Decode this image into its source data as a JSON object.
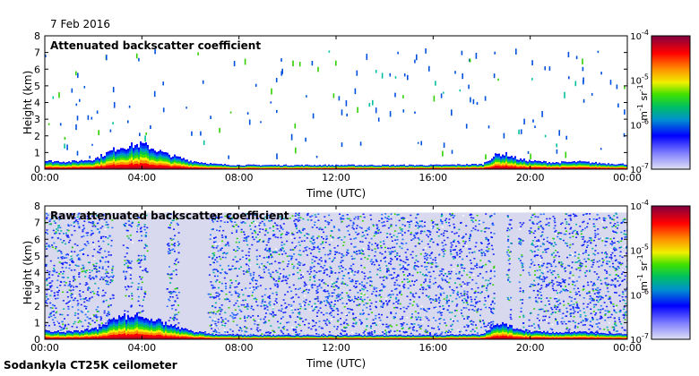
{
  "date": "7 Feb 2016",
  "footer": "Sodankyla CT25K ceilometer",
  "chart_data": [
    {
      "type": "heatmap",
      "title": "Attenuated backscatter coefficient",
      "xlabel": "Time (UTC)",
      "ylabel": "Height (km)",
      "x_ticks": [
        "00:00",
        "04:00",
        "08:00",
        "12:00",
        "16:00",
        "20:00",
        "00:00"
      ],
      "y_ticks": [
        "0",
        "1",
        "2",
        "3",
        "4",
        "5",
        "6",
        "7",
        "8"
      ],
      "xlim_hours": [
        0,
        24
      ],
      "ylim_km": [
        0,
        8
      ],
      "grid": false,
      "colorbar": {
        "scale": "log",
        "range": [
          1e-07,
          0.0001
        ],
        "ticks": [
          {
            "mant": "10",
            "exp": "-4"
          },
          {
            "mant": "10",
            "exp": "-5"
          },
          {
            "mant": "10",
            "exp": "-6"
          },
          {
            "mant": "10",
            "exp": "-7"
          }
        ],
        "unit": {
          "a": "m",
          "a_exp": "-1",
          "b": "sr",
          "b_exp": "-1"
        }
      },
      "features": {
        "boundary_layer_km": [
          [
            0,
            0.5
          ],
          [
            1,
            0.45
          ],
          [
            2,
            0.6
          ],
          [
            3,
            1.3
          ],
          [
            4,
            1.5
          ],
          [
            5,
            0.9
          ],
          [
            6,
            0.5
          ],
          [
            7,
            0.3
          ],
          [
            8,
            0.25
          ],
          [
            10,
            0.25
          ],
          [
            12,
            0.25
          ],
          [
            14,
            0.25
          ],
          [
            16,
            0.25
          ],
          [
            18,
            0.3
          ],
          [
            18.6,
            0.9
          ],
          [
            19,
            0.9
          ],
          [
            19.5,
            0.6
          ],
          [
            20,
            0.5
          ],
          [
            21,
            0.4
          ],
          [
            22,
            0.45
          ],
          [
            23,
            0.35
          ],
          [
            24,
            0.3
          ]
        ]
      }
    },
    {
      "type": "heatmap",
      "title": "Raw attenuated backscatter coefficient",
      "xlabel": "Time (UTC)",
      "ylabel": "Height (km)",
      "x_ticks": [
        "00:00",
        "04:00",
        "08:00",
        "12:00",
        "16:00",
        "20:00",
        "00:00"
      ],
      "y_ticks": [
        "0",
        "1",
        "2",
        "3",
        "4",
        "5",
        "6",
        "7",
        "8"
      ],
      "xlim_hours": [
        0,
        24
      ],
      "ylim_km": [
        0,
        8
      ],
      "grid": false,
      "colorbar": {
        "scale": "log",
        "range": [
          1e-07,
          0.0001
        ],
        "ticks": [
          {
            "mant": "10",
            "exp": "-4"
          },
          {
            "mant": "10",
            "exp": "-5"
          },
          {
            "mant": "10",
            "exp": "-6"
          },
          {
            "mant": "10",
            "exp": "-7"
          }
        ],
        "unit": {
          "a": "m",
          "a_exp": "-1",
          "b": "sr",
          "b_exp": "-1"
        }
      },
      "features": {
        "noise_top_km": 7.6,
        "gap_intervals_hours": [
          [
            2.8,
            3.2
          ],
          [
            3.6,
            3.75
          ],
          [
            4.2,
            5.0
          ],
          [
            5.5,
            6.7
          ],
          [
            18.5,
            19.0
          ],
          [
            19.2,
            19.5
          ],
          [
            19.7,
            19.9
          ]
        ]
      }
    }
  ]
}
